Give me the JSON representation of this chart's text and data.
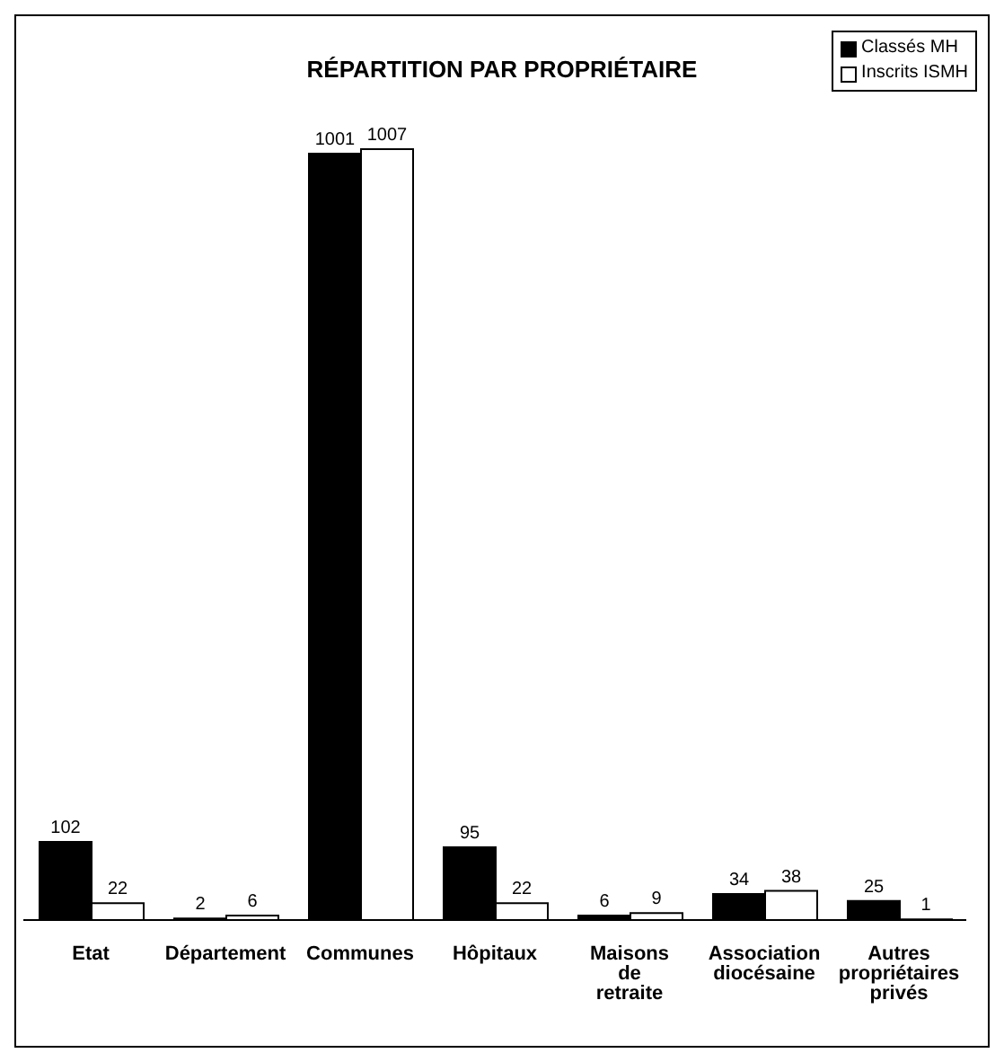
{
  "chart_data": {
    "type": "bar",
    "title": "RÉPARTITION PAR PROPRIÉTAIRE",
    "categories": [
      "Etat",
      "Département",
      "Communes",
      "Hôpitaux",
      "Maisons de retraite",
      "Association diocésaine",
      "Autres propriétaires privés"
    ],
    "series": [
      {
        "name": "Classés MH",
        "color": "#000000",
        "values": [
          102,
          2,
          1001,
          95,
          6,
          34,
          25
        ]
      },
      {
        "name": "Inscrits ISMH",
        "color": "#ffffff",
        "values": [
          22,
          6,
          1007,
          22,
          9,
          38,
          1
        ]
      }
    ],
    "data_labels": true,
    "legend": "top right",
    "tick_labels": "x",
    "grid": false
  }
}
